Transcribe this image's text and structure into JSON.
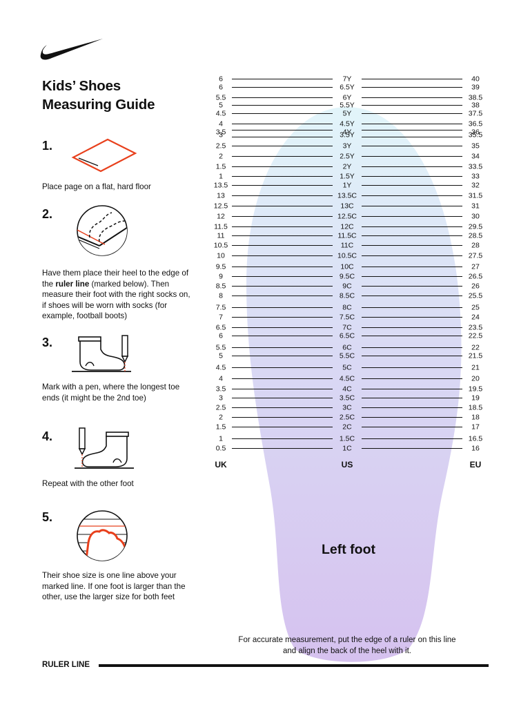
{
  "brand": {
    "logo": "swoosh-logo"
  },
  "title": {
    "line1": "Kids’ Shoes",
    "line2": "Measuring Guide"
  },
  "steps": [
    {
      "number": "1.",
      "text": "Place page on a flat, hard floor"
    },
    {
      "number": "2.",
      "text_before": "Have them place their heel to the edge of the ",
      "text_bold": "ruler line",
      "text_after": " (marked below). Then measure their foot with the right socks on, if shoes will be worn with socks (for example, football boots)"
    },
    {
      "number": "3.",
      "text": "Mark with a pen, where the longest toe ends (it might be the 2nd toe)"
    },
    {
      "number": "4.",
      "text": "Repeat with the other foot"
    },
    {
      "number": "5.",
      "text": "Their shoe size is one line above your marked line. If one foot is larger than the other, use the larger size for both feet"
    }
  ],
  "size_chart": {
    "headers": {
      "uk": "UK",
      "us": "US",
      "eu": "EU"
    },
    "rows": [
      {
        "uk": "6",
        "us": "7Y",
        "eu": "40"
      },
      {
        "uk": "6",
        "us": "6.5Y",
        "eu": "39"
      },
      {
        "uk": "5.5",
        "us": "6Y",
        "eu": "38.5"
      },
      {
        "uk": "5",
        "us": "5.5Y",
        "eu": "38"
      },
      {
        "uk": "4.5",
        "us": "5Y",
        "eu": "37.5"
      },
      {
        "uk": "4",
        "us": "4.5Y",
        "eu": "36.5"
      },
      {
        "uk": "3.5",
        "us": "4Y",
        "eu": "36"
      },
      {
        "uk": "3",
        "us": "3.5Y",
        "eu": "35.5"
      },
      {
        "uk": "2.5",
        "us": "3Y",
        "eu": "35"
      },
      {
        "uk": "2",
        "us": "2.5Y",
        "eu": "34"
      },
      {
        "uk": "1.5",
        "us": "2Y",
        "eu": "33.5"
      },
      {
        "uk": "1",
        "us": "1.5Y",
        "eu": "33"
      },
      {
        "uk": "13.5",
        "us": "1Y",
        "eu": "32"
      },
      {
        "uk": "13",
        "us": "13.5C",
        "eu": "31.5"
      },
      {
        "uk": "12.5",
        "us": "13C",
        "eu": "31"
      },
      {
        "uk": "12",
        "us": "12.5C",
        "eu": "30"
      },
      {
        "uk": "11.5",
        "us": "12C",
        "eu": "29.5"
      },
      {
        "uk": "11",
        "us": "11.5C",
        "eu": "28.5"
      },
      {
        "uk": "10.5",
        "us": "11C",
        "eu": "28"
      },
      {
        "uk": "10",
        "us": "10.5C",
        "eu": "27.5"
      },
      {
        "uk": "9.5",
        "us": "10C",
        "eu": "27"
      },
      {
        "uk": "9",
        "us": "9.5C",
        "eu": "26.5"
      },
      {
        "uk": "8.5",
        "us": "9C",
        "eu": "26"
      },
      {
        "uk": "8",
        "us": "8.5C",
        "eu": "25.5"
      },
      {
        "uk": "7.5",
        "us": "8C",
        "eu": "25"
      },
      {
        "uk": "7",
        "us": "7.5C",
        "eu": "24"
      },
      {
        "uk": "6.5",
        "us": "7C",
        "eu": "23.5"
      },
      {
        "uk": "6",
        "us": "6.5C",
        "eu": "22.5"
      },
      {
        "uk": "5.5",
        "us": "6C",
        "eu": "22"
      },
      {
        "uk": "5",
        "us": "5.5C",
        "eu": "21.5"
      },
      {
        "uk": "4.5",
        "us": "5C",
        "eu": "21"
      },
      {
        "uk": "4",
        "us": "4.5C",
        "eu": "20"
      },
      {
        "uk": "3.5",
        "us": "4C",
        "eu": "19.5"
      },
      {
        "uk": "3",
        "us": "3.5C",
        "eu": "19"
      },
      {
        "uk": "2.5",
        "us": "3C",
        "eu": "18.5"
      },
      {
        "uk": "2",
        "us": "2.5C",
        "eu": "18"
      },
      {
        "uk": "1.5",
        "us": "2C",
        "eu": "17"
      },
      {
        "uk": "1",
        "us": "1.5C",
        "eu": "16.5"
      },
      {
        "uk": "0.5",
        "us": "1C",
        "eu": "16"
      }
    ]
  },
  "foot_label": "Left foot",
  "note": "For accurate measurement, put the edge of a ruler on this line and align the back of the heel with it.",
  "ruler_label": "RULER LINE",
  "colors": {
    "accent": "#e8401c",
    "text": "#111111",
    "foot_top": "#dff3f8",
    "foot_bottom": "#d8c4f0"
  }
}
